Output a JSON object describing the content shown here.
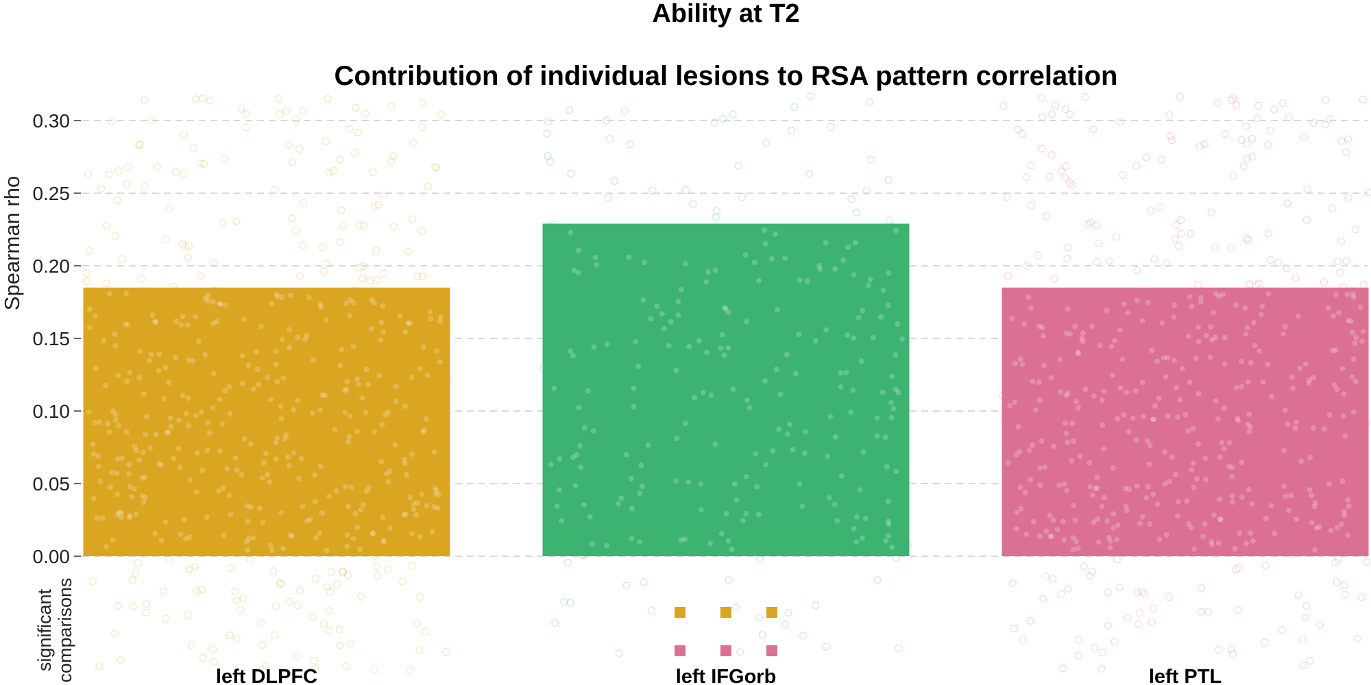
{
  "chart_data": {
    "type": "bar",
    "title": "Ability at T2",
    "subtitle": "Contribution of individual lesions to RSA pattern correlation",
    "ylabel": "Spearman rho",
    "comparisons_label": [
      "significant",
      "comparisons"
    ],
    "ylim": [
      0,
      0.32
    ],
    "yticks": [
      0.0,
      0.05,
      0.1,
      0.15,
      0.2,
      0.25,
      0.3
    ],
    "ytick_labels": [
      "0.00",
      "0.05",
      "0.10",
      "0.15",
      "0.20",
      "0.25",
      "0.30"
    ],
    "grid": "horizontal dashed",
    "categories": [
      "left DLPFC",
      "left IFGorb",
      "left PTL"
    ],
    "values": [
      0.185,
      0.229,
      0.185
    ],
    "colors": [
      "#DAA520",
      "#3CB371",
      "#DB7093"
    ],
    "significant_comparisons": [
      {
        "colors": [
          "#DAA520",
          "#DAA520",
          "#DAA520"
        ]
      },
      {
        "colors": [
          "#DB7093",
          "#DB7093",
          "#DB7093"
        ]
      }
    ]
  }
}
